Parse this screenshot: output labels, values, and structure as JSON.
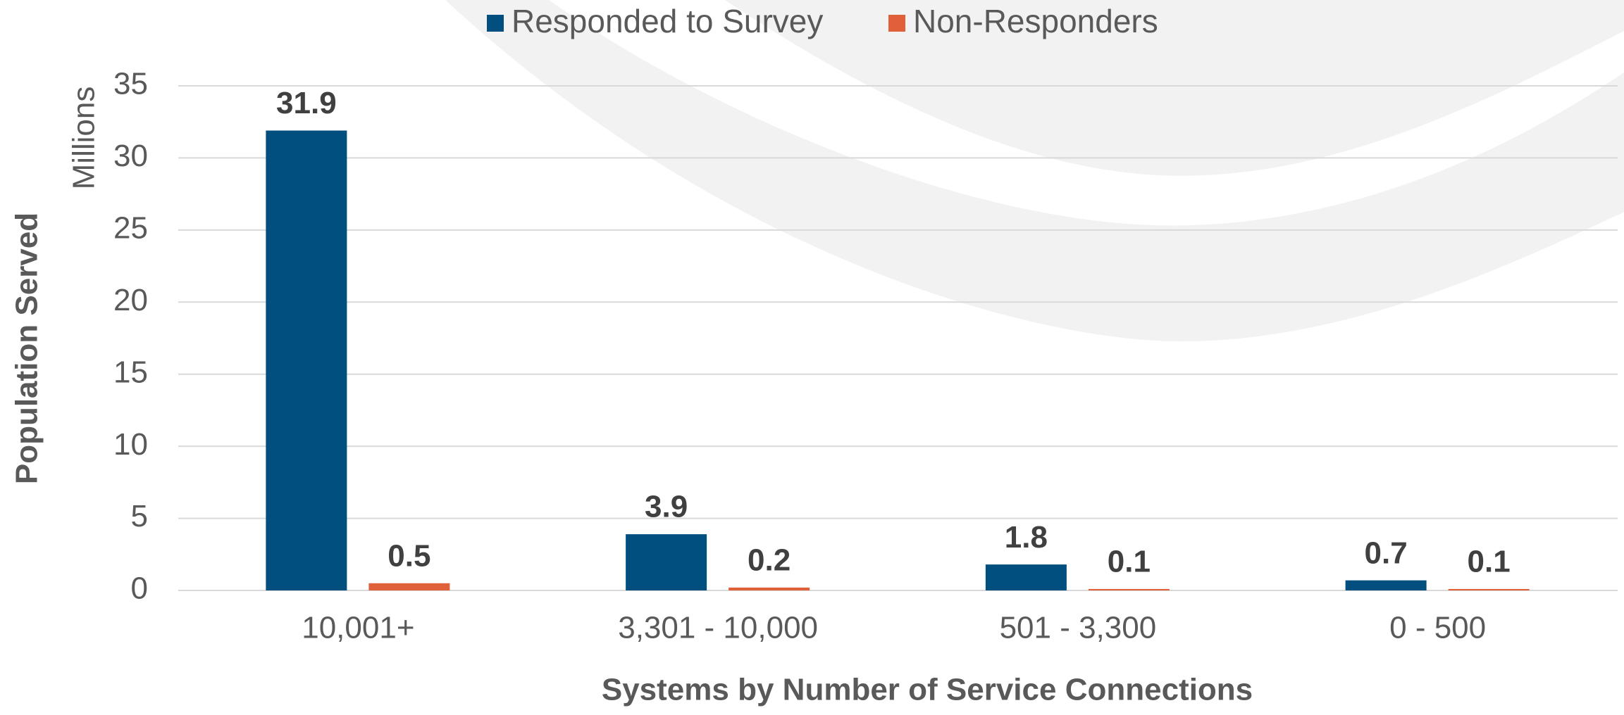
{
  "chart_data": {
    "type": "bar",
    "x_label": "Systems by Number of Service Connections",
    "y_label": "Population Served",
    "y_unit_label": "Millions",
    "categories": [
      "10,001+",
      "3,301 - 10,000",
      "501 - 3,300",
      "0 - 500"
    ],
    "series": [
      {
        "name": "Responded to Survey",
        "color": "#004f7f",
        "values": [
          31.9,
          3.9,
          1.8,
          0.7
        ]
      },
      {
        "name": "Non-Responders",
        "color": "#e0603a",
        "values": [
          0.5,
          0.2,
          0.1,
          0.1
        ]
      }
    ],
    "ylim": [
      0,
      35
    ],
    "yticks": [
      0,
      5,
      10,
      15,
      20,
      25,
      30,
      35
    ],
    "grid": true,
    "legend": "top"
  }
}
